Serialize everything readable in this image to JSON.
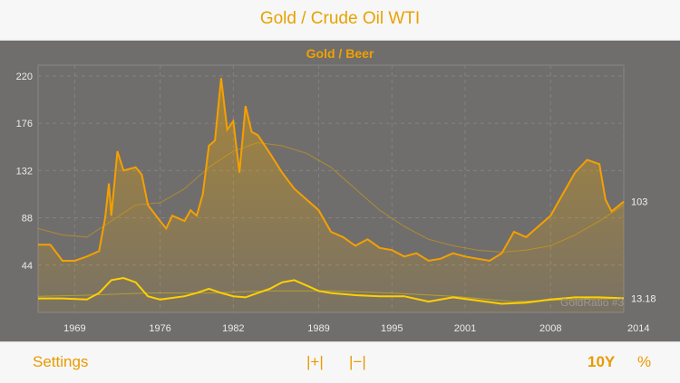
{
  "header": {
    "title": "Gold / Crude Oil WTI"
  },
  "toolbar": {
    "settings_label": "Settings",
    "zoom_in_label": "|+|",
    "zoom_out_label": "|−|",
    "range_label": "10Y",
    "percent_label": "%"
  },
  "watermark": "GoldRatio #3",
  "colors": {
    "accent": "#e89a00",
    "series_primary": "#f5a000",
    "series_secondary": "#ffd000",
    "background": "#706e6c"
  },
  "chart_data": {
    "type": "line",
    "title": "Gold / Beer",
    "ylim": [
      0,
      230
    ],
    "xlim": [
      1966,
      2014
    ],
    "y_ticks": [
      44,
      88,
      132,
      176,
      220
    ],
    "x_ticks": [
      1969,
      1976,
      1982,
      1989,
      1995,
      2001,
      2008,
      2014
    ],
    "grid": true,
    "legend": "none",
    "series": [
      {
        "values": [
          [
            1966,
            63
          ],
          [
            1967,
            63
          ],
          [
            1968,
            48
          ],
          [
            1969,
            48
          ],
          [
            1970,
            52
          ],
          [
            1971,
            57
          ],
          [
            1971.5,
            88
          ],
          [
            1971.8,
            120
          ],
          [
            1972,
            90
          ],
          [
            1972.5,
            150
          ],
          [
            1973,
            132
          ],
          [
            1974,
            135
          ],
          [
            1974.5,
            128
          ],
          [
            1975,
            100
          ],
          [
            1976,
            85
          ],
          [
            1976.5,
            78
          ],
          [
            1977,
            90
          ],
          [
            1978,
            85
          ],
          [
            1978.5,
            95
          ],
          [
            1979,
            90
          ],
          [
            1979.5,
            110
          ],
          [
            1980,
            155
          ],
          [
            1980.5,
            160
          ],
          [
            1981,
            218
          ],
          [
            1981.5,
            170
          ],
          [
            1982,
            178
          ],
          [
            1982.5,
            130
          ],
          [
            1983,
            192
          ],
          [
            1983.5,
            168
          ],
          [
            1984,
            165
          ],
          [
            1985,
            148
          ],
          [
            1986,
            130
          ],
          [
            1987,
            115
          ],
          [
            1988,
            105
          ],
          [
            1989,
            95
          ],
          [
            1990,
            75
          ],
          [
            1991,
            70
          ],
          [
            1992,
            62
          ],
          [
            1993,
            68
          ],
          [
            1994,
            60
          ],
          [
            1995,
            58
          ],
          [
            1996,
            52
          ],
          [
            1997,
            55
          ],
          [
            1998,
            48
          ],
          [
            1999,
            50
          ],
          [
            2000,
            55
          ],
          [
            2001,
            52
          ],
          [
            2002,
            50
          ],
          [
            2003,
            48
          ],
          [
            2004,
            55
          ],
          [
            2005,
            75
          ],
          [
            2006,
            70
          ],
          [
            2007,
            80
          ],
          [
            2008,
            90
          ],
          [
            2009,
            110
          ],
          [
            2010,
            130
          ],
          [
            2011,
            142
          ],
          [
            2012,
            138
          ],
          [
            2012.5,
            105
          ],
          [
            2013,
            94
          ],
          [
            2014,
            103
          ]
        ]
      },
      {
        "values": [
          [
            1966,
            78
          ],
          [
            1968,
            72
          ],
          [
            1970,
            70
          ],
          [
            1972,
            85
          ],
          [
            1974,
            100
          ],
          [
            1976,
            102
          ],
          [
            1978,
            115
          ],
          [
            1980,
            135
          ],
          [
            1982,
            150
          ],
          [
            1984,
            158
          ],
          [
            1986,
            155
          ],
          [
            1988,
            148
          ],
          [
            1990,
            135
          ],
          [
            1992,
            115
          ],
          [
            1994,
            95
          ],
          [
            1996,
            80
          ],
          [
            1998,
            68
          ],
          [
            2000,
            62
          ],
          [
            2002,
            58
          ],
          [
            2004,
            56
          ],
          [
            2006,
            58
          ],
          [
            2008,
            62
          ],
          [
            2010,
            72
          ],
          [
            2012,
            85
          ],
          [
            2014,
            100
          ]
        ]
      },
      {
        "values": [
          [
            1966,
            13
          ],
          [
            1968,
            13
          ],
          [
            1970,
            12
          ],
          [
            1971,
            18
          ],
          [
            1972,
            30
          ],
          [
            1973,
            32
          ],
          [
            1974,
            28
          ],
          [
            1975,
            15
          ],
          [
            1976,
            12
          ],
          [
            1978,
            15
          ],
          [
            1979,
            18
          ],
          [
            1980,
            22
          ],
          [
            1981,
            18
          ],
          [
            1982,
            15
          ],
          [
            1983,
            14
          ],
          [
            1984,
            18
          ],
          [
            1985,
            22
          ],
          [
            1986,
            28
          ],
          [
            1987,
            30
          ],
          [
            1988,
            25
          ],
          [
            1989,
            20
          ],
          [
            1990,
            18
          ],
          [
            1992,
            16
          ],
          [
            1994,
            15
          ],
          [
            1996,
            15
          ],
          [
            1998,
            10
          ],
          [
            2000,
            14
          ],
          [
            2002,
            11
          ],
          [
            2004,
            8
          ],
          [
            2006,
            9
          ],
          [
            2008,
            12
          ],
          [
            2010,
            14
          ],
          [
            2012,
            14
          ],
          [
            2014,
            13.18
          ]
        ]
      },
      {
        "values": [
          [
            1966,
            15
          ],
          [
            1970,
            16
          ],
          [
            1975,
            18
          ],
          [
            1980,
            18
          ],
          [
            1985,
            20
          ],
          [
            1990,
            20
          ],
          [
            1995,
            18
          ],
          [
            2000,
            15
          ],
          [
            2005,
            10
          ],
          [
            2010,
            12
          ],
          [
            2014,
            13
          ]
        ]
      }
    ],
    "last_values": [
      103,
      13.18
    ]
  }
}
